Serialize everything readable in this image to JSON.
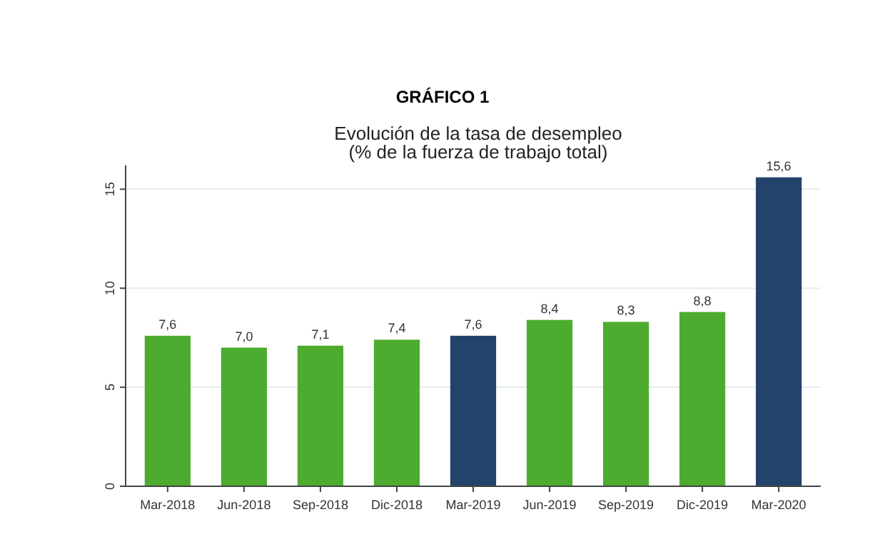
{
  "chart_data": {
    "type": "bar",
    "title": "Evolución de la tasa de desempleo",
    "subtitle": "(% de la fuerza de trabajo total)",
    "annotations": [
      "GRÁFICO 1"
    ],
    "categories": [
      "Mar-2018",
      "Jun-2018",
      "Sep-2018",
      "Dic-2018",
      "Mar-2019",
      "Jun-2019",
      "Sep-2019",
      "Dic-2019",
      "Mar-2020"
    ],
    "values": [
      7.6,
      7.0,
      7.1,
      7.4,
      7.6,
      8.4,
      8.3,
      8.8,
      15.6
    ],
    "value_labels": [
      "7,6",
      "7,0",
      "7,1",
      "7,4",
      "7,6",
      "8,4",
      "8,3",
      "8,8",
      "15,6"
    ],
    "colors": [
      "#4dac2f",
      "#4dac2f",
      "#4dac2f",
      "#4dac2f",
      "#22436a",
      "#4dac2f",
      "#4dac2f",
      "#4dac2f",
      "#22436a"
    ],
    "ylim": [
      0,
      16.2
    ],
    "yticks": [
      0,
      5,
      10,
      15
    ],
    "grid": "y"
  }
}
